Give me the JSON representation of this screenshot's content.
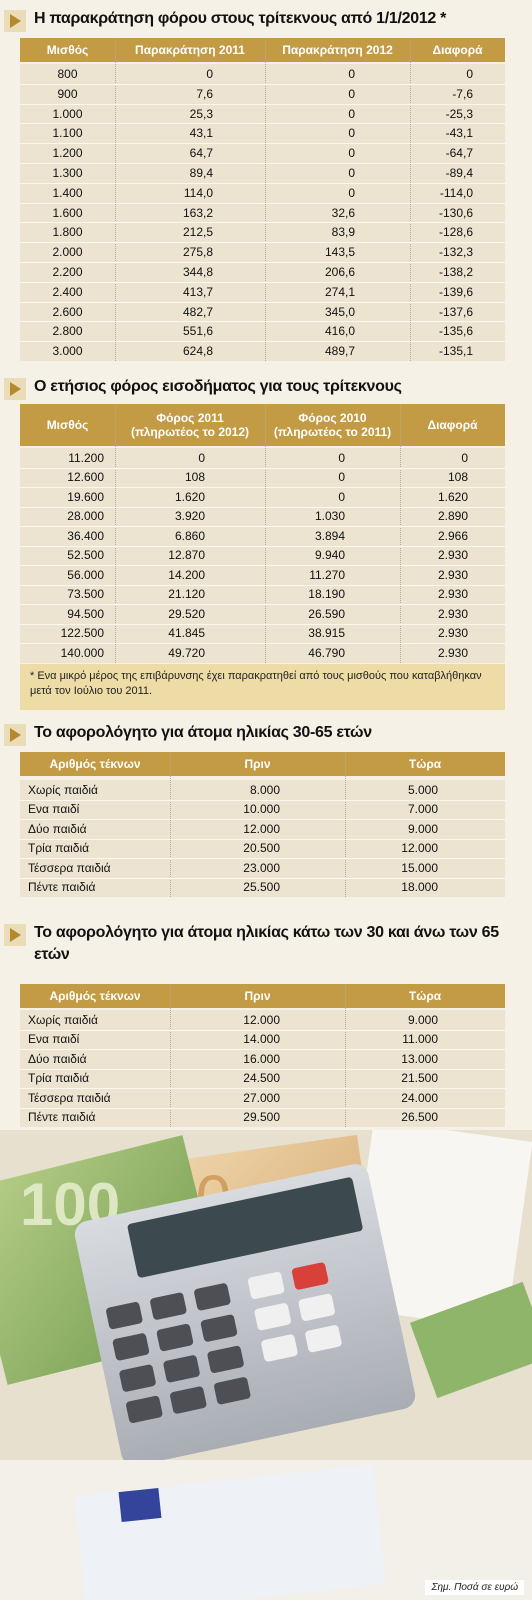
{
  "sections": [
    {
      "title": "Η παρακράτηση φόρου στους τρίτεκνους από 1/1/2012 *",
      "table": {
        "header": [
          "Μισθός",
          "Παρακράτηση 2011",
          "Παρακράτηση 2012",
          "Διαφορά"
        ],
        "rows": [
          [
            "800",
            "0",
            "0",
            "0"
          ],
          [
            "900",
            "7,6",
            "0",
            "-7,6"
          ],
          [
            "1.000",
            "25,3",
            "0",
            "-25,3"
          ],
          [
            "1.100",
            "43,1",
            "0",
            "-43,1"
          ],
          [
            "1.200",
            "64,7",
            "0",
            "-64,7"
          ],
          [
            "1.300",
            "89,4",
            "0",
            "-89,4"
          ],
          [
            "1.400",
            "114,0",
            "0",
            "-114,0"
          ],
          [
            "1.600",
            "163,2",
            "32,6",
            "-130,6"
          ],
          [
            "1.800",
            "212,5",
            "83,9",
            "-128,6"
          ],
          [
            "2.000",
            "275,8",
            "143,5",
            "-132,3"
          ],
          [
            "2.200",
            "344,8",
            "206,6",
            "-138,2"
          ],
          [
            "2.400",
            "413,7",
            "274,1",
            "-139,6"
          ],
          [
            "2.600",
            "482,7",
            "345,0",
            "-137,6"
          ],
          [
            "2.800",
            "551,6",
            "416,0",
            "-135,6"
          ],
          [
            "3.000",
            "624,8",
            "489,7",
            "-135,1"
          ]
        ]
      }
    },
    {
      "title": "Ο ετήσιος φόρος εισοδήματος για τους τρίτεκνους",
      "table": {
        "header": [
          "Μισθός",
          [
            "Φόρος 2011",
            "(πληρωτέος το 2012)"
          ],
          [
            "Φόρος 2010",
            "(πληρωτέος το 2011)"
          ],
          "Διαφορά"
        ],
        "rows": [
          [
            "11.200",
            "0",
            "0",
            "0"
          ],
          [
            "12.600",
            "108",
            "0",
            "108"
          ],
          [
            "19.600",
            "1.620",
            "0",
            "1.620"
          ],
          [
            "28.000",
            "3.920",
            "1.030",
            "2.890"
          ],
          [
            "36.400",
            "6.860",
            "3.894",
            "2.966"
          ],
          [
            "52.500",
            "12.870",
            "9.940",
            "2.930"
          ],
          [
            "56.000",
            "14.200",
            "11.270",
            "2.930"
          ],
          [
            "73.500",
            "21.120",
            "18.190",
            "2.930"
          ],
          [
            "94.500",
            "29.520",
            "26.590",
            "2.930"
          ],
          [
            "122.500",
            "41.845",
            "38.915",
            "2.930"
          ],
          [
            "140.000",
            "49.720",
            "46.790",
            "2.930"
          ]
        ]
      },
      "footnote": "* Ενα μικρό μέρος της επιβάρυνσης έχει παρακρατηθεί από τους μισθούς που καταβλήθηκαν μετά τον Ιούλιο του 2011."
    },
    {
      "title": "Το αφορολόγητο για άτομα ηλικίας 30-65 ετών",
      "table": {
        "header": [
          "Αριθμός τέκνων",
          "Πριν",
          "Τώρα"
        ],
        "rows": [
          [
            "Χωρίς παιδιά",
            "8.000",
            "5.000"
          ],
          [
            "Ενα παιδί",
            "10.000",
            "7.000"
          ],
          [
            "Δύο παιδιά",
            "12.000",
            "9.000"
          ],
          [
            "Τρία παιδιά",
            "20.500",
            "12.000"
          ],
          [
            "Τέσσερα παιδιά",
            "23.000",
            "15.000"
          ],
          [
            "Πέντε παιδιά",
            "25.500",
            "18.000"
          ]
        ]
      }
    },
    {
      "title": "Το αφορολόγητο για άτομα ηλικίας κάτω των 30 και άνω των 65 ετών",
      "table": {
        "header": [
          "Αριθμός τέκνων",
          "Πριν",
          "Τώρα"
        ],
        "rows": [
          [
            "Χωρίς παιδιά",
            "12.000",
            "9.000"
          ],
          [
            "Ενα παιδί",
            "14.000",
            "11.000"
          ],
          [
            "Δύο παιδιά",
            "16.000",
            "13.000"
          ],
          [
            "Τρία παιδιά",
            "24.500",
            "21.500"
          ],
          [
            "Τέσσερα παιδιά",
            "27.000",
            "24.000"
          ],
          [
            "Πέντε παιδιά",
            "29.500",
            "26.500"
          ]
        ]
      }
    }
  ],
  "note": "Σημ. Ποσά σε ευρώ"
}
